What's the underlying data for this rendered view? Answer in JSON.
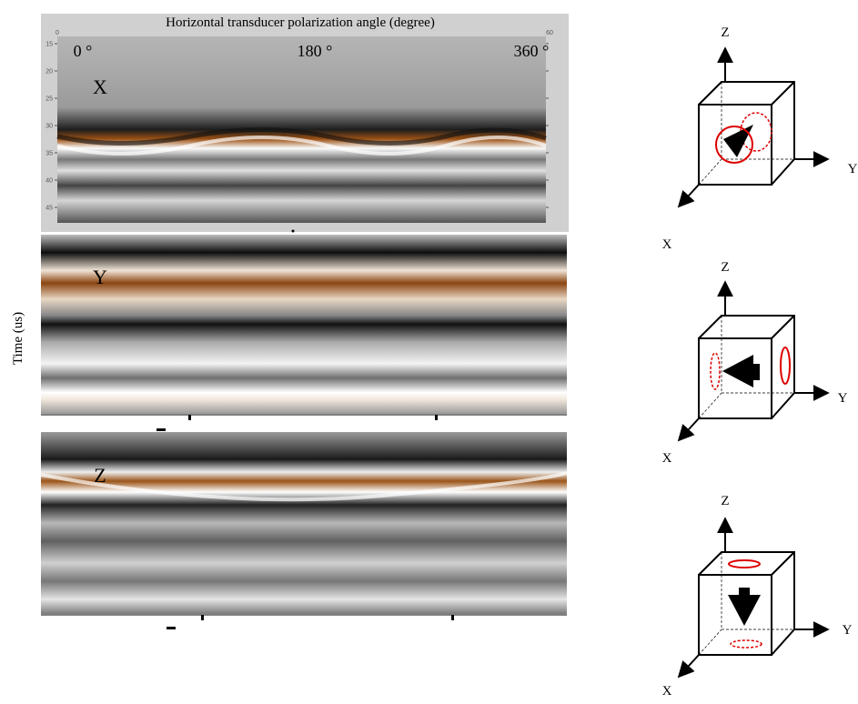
{
  "figure": {
    "title": "Horizontal transducer polarization angle (degree)",
    "y_label": "Time (us)",
    "angle_labels": [
      "0 °",
      "180 °",
      "360 °"
    ],
    "corner_ticks": [
      "0",
      "60"
    ],
    "time_ticks": [
      "15",
      "20",
      "25",
      "30",
      "35",
      "40",
      "45"
    ],
    "panels": [
      {
        "label": "X"
      },
      {
        "label": "Y"
      },
      {
        "label": "Z"
      }
    ],
    "cubes": [
      {
        "z": "Z",
        "y": "Y",
        "x": "X"
      },
      {
        "z": "Z",
        "y": "Y",
        "x": "X"
      },
      {
        "z": "Z",
        "y": "Y",
        "x": "X"
      }
    ]
  }
}
